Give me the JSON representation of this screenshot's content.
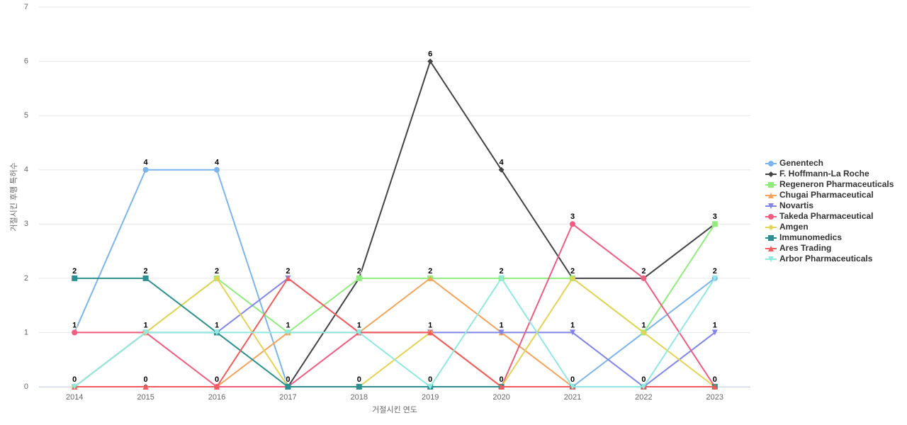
{
  "chart_data": {
    "type": "line",
    "x_label": "거절시킨 연도",
    "y_label": "거절시킨 후행 특허수",
    "categories": [
      "2014",
      "2015",
      "2016",
      "2017",
      "2018",
      "2019",
      "2020",
      "2021",
      "2022",
      "2023"
    ],
    "ylim": [
      0,
      7
    ],
    "yticks": [
      0,
      1,
      2,
      3,
      4,
      5,
      6,
      7
    ],
    "grid": true,
    "legend": "right",
    "series": [
      {
        "name": "Genentech",
        "color": "#7cb5ec",
        "marker": "circle",
        "values": [
          1,
          4,
          4,
          0,
          0,
          0,
          0,
          0,
          1,
          2
        ]
      },
      {
        "name": "F. Hoffmann-La Roche",
        "color": "#434348",
        "marker": "diamond",
        "values": [
          0,
          0,
          0,
          0,
          2,
          6,
          4,
          2,
          2,
          3
        ]
      },
      {
        "name": "Regeneron Pharmaceuticals",
        "color": "#90ed7d",
        "marker": "square",
        "values": [
          0,
          1,
          2,
          1,
          2,
          2,
          2,
          2,
          1,
          3
        ]
      },
      {
        "name": "Chugai Pharmaceutical",
        "color": "#f7a35c",
        "marker": "triangle",
        "values": [
          0,
          0,
          0,
          1,
          1,
          2,
          1,
          0,
          0,
          0
        ]
      },
      {
        "name": "Novartis",
        "color": "#8085e9",
        "marker": "triangle-down",
        "values": [
          0,
          1,
          1,
          2,
          1,
          1,
          1,
          1,
          0,
          1
        ]
      },
      {
        "name": "Takeda Pharmaceutical",
        "color": "#f15c80",
        "marker": "circle",
        "values": [
          1,
          1,
          0,
          0,
          1,
          1,
          0,
          3,
          2,
          0
        ]
      },
      {
        "name": "Amgen",
        "color": "#e4d354",
        "marker": "diamond",
        "values": [
          0,
          1,
          2,
          0,
          0,
          1,
          0,
          2,
          1,
          0
        ]
      },
      {
        "name": "Immunomedics",
        "color": "#2b908f",
        "marker": "square",
        "values": [
          2,
          2,
          1,
          0,
          0,
          0,
          0,
          0,
          0,
          0
        ]
      },
      {
        "name": "Ares Trading",
        "color": "#f45b5b",
        "marker": "triangle",
        "values": [
          0,
          0,
          0,
          2,
          1,
          1,
          0,
          0,
          0,
          0
        ]
      },
      {
        "name": "Arbor Pharmaceuticals",
        "color": "#91e8e1",
        "marker": "triangle-down",
        "values": [
          0,
          1,
          1,
          1,
          1,
          0,
          2,
          0,
          0,
          2
        ]
      }
    ]
  }
}
